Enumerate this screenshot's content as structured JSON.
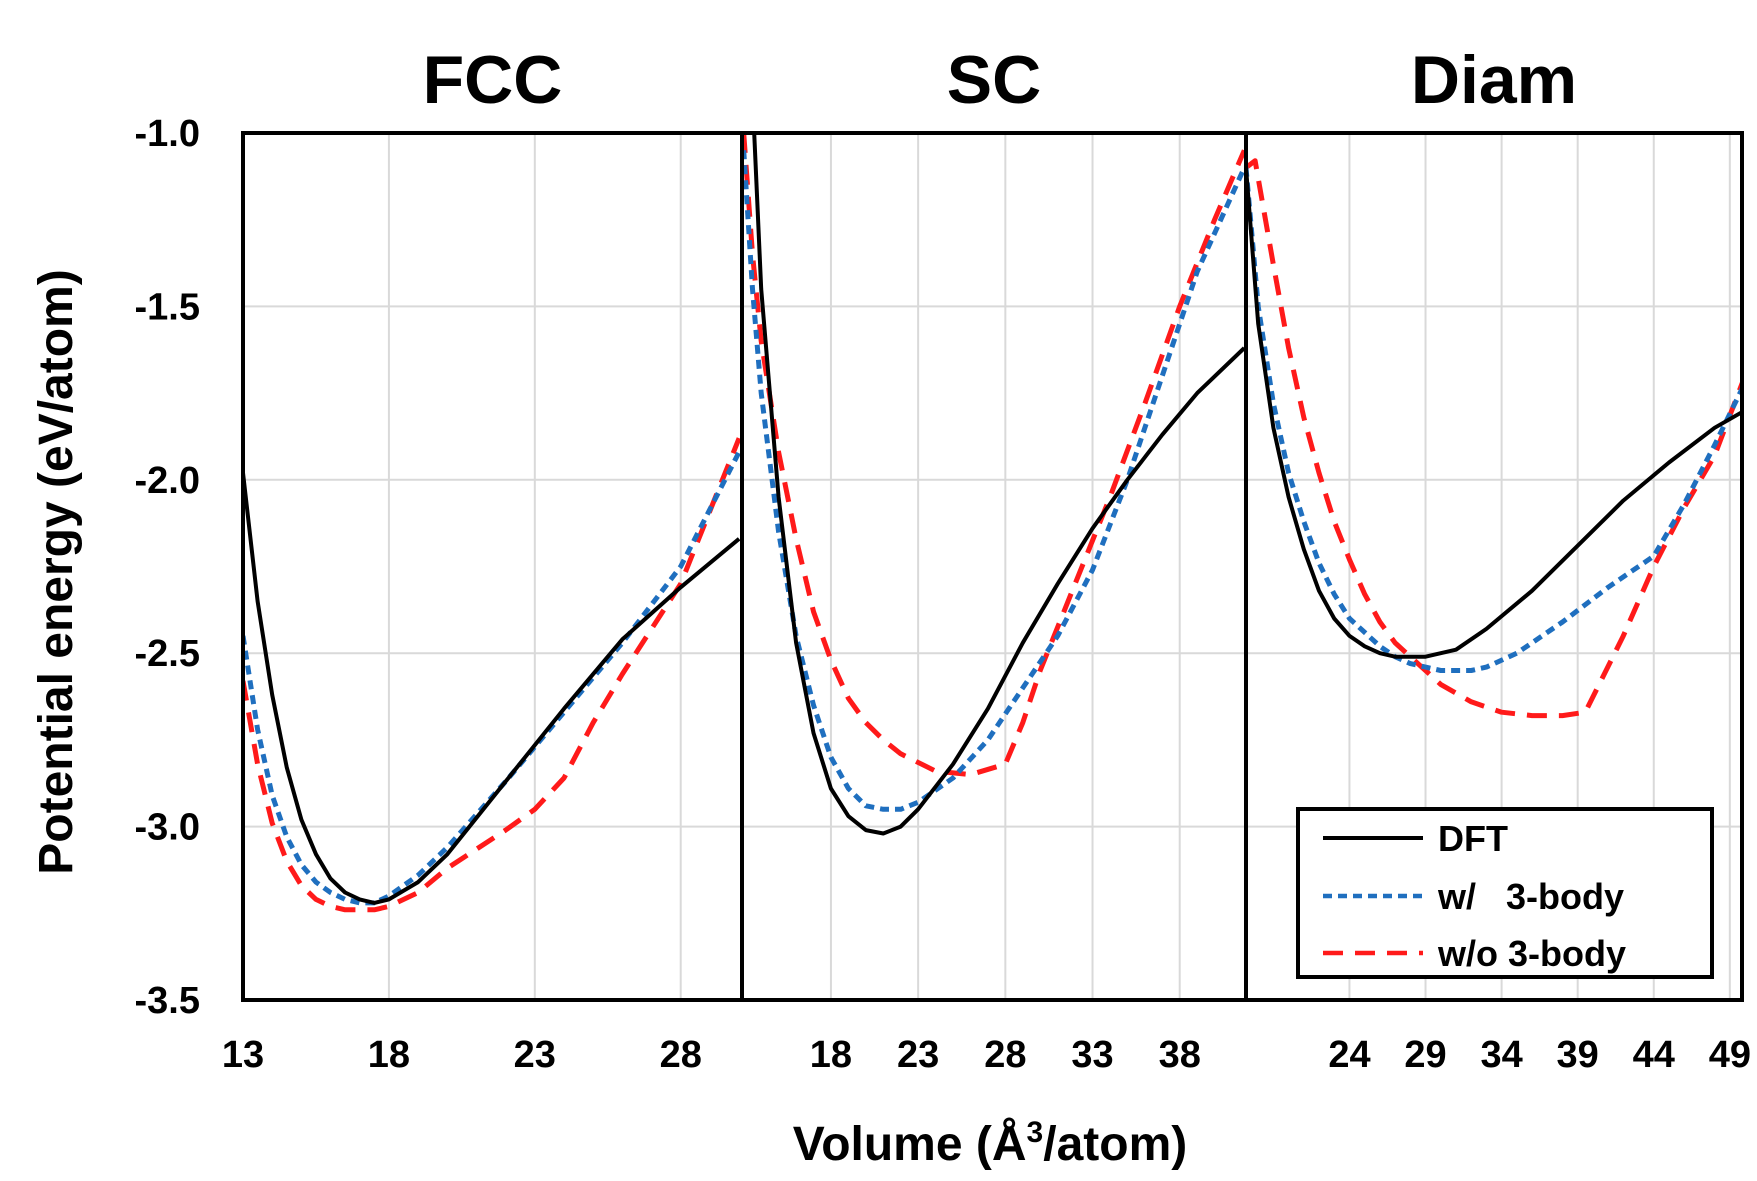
{
  "chart_data": {
    "type": "line",
    "ylabel": "Potential energy (eV/atom)",
    "xlabel_main": "Volume (Å",
    "xlabel_sup": "3",
    "xlabel_tail": "/atom)",
    "ylim": [
      -3.5,
      -1.0
    ],
    "yticks": [
      -1.0,
      -1.5,
      -2.0,
      -2.5,
      -3.0,
      -3.5
    ],
    "ytick_labels": [
      "-1.0",
      "-1.5",
      "-2.0",
      "-2.5",
      "-3.0",
      "-3.5"
    ],
    "grid": true,
    "legend_position": "bottom-right",
    "legend": [
      {
        "label": "DFT",
        "color": "#000000",
        "style": "solid"
      },
      {
        "label": "w/   3-body",
        "color": "#1f6fbf",
        "style": "dotted"
      },
      {
        "label": "w/o 3-body",
        "color": "#ff1a1a",
        "style": "dashed"
      }
    ],
    "panels": [
      {
        "title": "FCC",
        "xlim": [
          13,
          30.1
        ],
        "xticks": [
          13,
          18,
          23,
          28
        ],
        "series": [
          {
            "name": "DFT",
            "color": "#000000",
            "style": "solid",
            "x": [
              13.0,
              13.5,
              14.0,
              14.5,
              15.0,
              15.5,
              16.0,
              16.5,
              17.0,
              17.5,
              18.0,
              19.0,
              20.0,
              22.0,
              24.0,
              26.0,
              28.0,
              30.0
            ],
            "y": [
              -1.98,
              -2.35,
              -2.62,
              -2.83,
              -2.98,
              -3.08,
              -3.15,
              -3.19,
              -3.21,
              -3.22,
              -3.21,
              -3.16,
              -3.08,
              -2.87,
              -2.66,
              -2.46,
              -2.31,
              -2.17
            ]
          },
          {
            "name": "w/   3-body",
            "color": "#1f6fbf",
            "style": "dotted",
            "x": [
              13.0,
              13.5,
              14.0,
              14.5,
              15.0,
              15.5,
              16.0,
              16.5,
              17.0,
              17.5,
              18.0,
              19.0,
              20.0,
              22.0,
              24.0,
              26.0,
              28.0,
              30.0
            ],
            "y": [
              -2.45,
              -2.72,
              -2.91,
              -3.03,
              -3.11,
              -3.16,
              -3.19,
              -3.21,
              -3.22,
              -3.22,
              -3.2,
              -3.14,
              -3.06,
              -2.87,
              -2.67,
              -2.47,
              -2.25,
              -1.92
            ]
          },
          {
            "name": "w/o 3-body",
            "color": "#ff1a1a",
            "style": "dashed",
            "x": [
              13.0,
              13.5,
              14.0,
              14.5,
              15.0,
              15.5,
              16.0,
              16.5,
              17.0,
              17.5,
              18.0,
              19.0,
              20.0,
              22.0,
              23.0,
              24.0,
              25.0,
              26.0,
              28.0,
              30.0
            ],
            "y": [
              -2.58,
              -2.82,
              -2.99,
              -3.1,
              -3.17,
              -3.21,
              -3.23,
              -3.24,
              -3.24,
              -3.24,
              -3.23,
              -3.19,
              -3.12,
              -3.01,
              -2.95,
              -2.86,
              -2.7,
              -2.56,
              -2.3,
              -1.88
            ]
          }
        ]
      },
      {
        "title": "SC",
        "xlim": [
          12.9,
          41.8
        ],
        "xticks": [
          18,
          23,
          28,
          33,
          38
        ],
        "series": [
          {
            "name": "DFT",
            "color": "#000000",
            "style": "solid",
            "x": [
              13.6,
              14.0,
              15.0,
              16.0,
              17.0,
              18.0,
              19.0,
              20.0,
              21.0,
              22.0,
              23.0,
              25.0,
              27.0,
              29.0,
              31.0,
              33.0,
              35.0,
              37.0,
              39.0,
              41.7
            ],
            "y": [
              -1.0,
              -1.45,
              -2.05,
              -2.47,
              -2.73,
              -2.89,
              -2.97,
              -3.01,
              -3.02,
              -3.0,
              -2.95,
              -2.82,
              -2.66,
              -2.47,
              -2.3,
              -2.14,
              -2.0,
              -1.87,
              -1.75,
              -1.62
            ]
          },
          {
            "name": "w/   3-body",
            "color": "#1f6fbf",
            "style": "dotted",
            "x": [
              13.0,
              13.5,
              14.0,
              15.0,
              16.0,
              17.0,
              18.0,
              19.0,
              20.0,
              21.0,
              22.0,
              23.0,
              25.0,
              27.0,
              29.0,
              31.0,
              33.0,
              35.0,
              37.0,
              39.0,
              41.7
            ],
            "y": [
              -1.05,
              -1.45,
              -1.75,
              -2.15,
              -2.45,
              -2.65,
              -2.8,
              -2.89,
              -2.94,
              -2.95,
              -2.95,
              -2.93,
              -2.86,
              -2.75,
              -2.6,
              -2.45,
              -2.26,
              -2.0,
              -1.7,
              -1.4,
              -1.1
            ]
          },
          {
            "name": "w/o 3-body",
            "color": "#ff1a1a",
            "style": "dashed",
            "x": [
              13.0,
              13.5,
              14.0,
              15.0,
              16.0,
              17.0,
              18.0,
              19.0,
              20.0,
              21.0,
              22.0,
              24.0,
              26.0,
              28.0,
              29.0,
              30.0,
              32.0,
              34.0,
              36.0,
              38.0,
              40.0,
              41.7
            ],
            "y": [
              -1.0,
              -1.35,
              -1.6,
              -1.92,
              -2.17,
              -2.38,
              -2.52,
              -2.63,
              -2.7,
              -2.75,
              -2.79,
              -2.84,
              -2.85,
              -2.82,
              -2.7,
              -2.55,
              -2.3,
              -2.05,
              -1.78,
              -1.5,
              -1.25,
              -1.05
            ]
          }
        ]
      },
      {
        "title": "Diam",
        "xlim": [
          17.2,
          49.8
        ],
        "xticks": [
          24,
          29,
          34,
          39,
          44,
          49
        ],
        "series": [
          {
            "name": "DFT",
            "color": "#000000",
            "style": "solid",
            "x": [
              17.2,
              18.0,
              19.0,
              20.0,
              21.0,
              22.0,
              23.0,
              24.0,
              25.0,
              26.0,
              27.0,
              28.0,
              29.0,
              30.0,
              31.0,
              33.0,
              36.0,
              39.0,
              42.0,
              45.0,
              48.0,
              50.0
            ],
            "y": [
              -1.1,
              -1.55,
              -1.85,
              -2.05,
              -2.2,
              -2.32,
              -2.4,
              -2.45,
              -2.48,
              -2.5,
              -2.51,
              -2.51,
              -2.51,
              -2.5,
              -2.49,
              -2.43,
              -2.32,
              -2.19,
              -2.06,
              -1.95,
              -1.85,
              -1.8
            ]
          },
          {
            "name": "w/   3-body",
            "color": "#1f6fbf",
            "style": "dotted",
            "x": [
              17.2,
              18.0,
              19.0,
              20.0,
              21.0,
              22.0,
              23.0,
              24.0,
              25.0,
              26.0,
              27.0,
              28.0,
              29.0,
              30.0,
              31.0,
              32.0,
              33.0,
              35.0,
              38.0,
              41.0,
              44.0,
              46.0,
              48.0,
              50.0
            ],
            "y": [
              -1.1,
              -1.5,
              -1.78,
              -1.98,
              -2.12,
              -2.24,
              -2.33,
              -2.4,
              -2.44,
              -2.48,
              -2.51,
              -2.53,
              -2.54,
              -2.55,
              -2.55,
              -2.55,
              -2.54,
              -2.5,
              -2.41,
              -2.31,
              -2.22,
              -2.07,
              -1.9,
              -1.72
            ]
          },
          {
            "name": "w/o 3-body",
            "color": "#ff1a1a",
            "style": "dashed",
            "x": [
              17.2,
              17.8,
              19.0,
              20.0,
              21.0,
              22.0,
              23.0,
              24.0,
              25.0,
              26.0,
              27.0,
              28.0,
              29.0,
              30.0,
              32.0,
              34.0,
              36.0,
              38.0,
              39.5,
              42.0,
              44.0,
              46.0,
              48.0,
              50.0
            ],
            "y": [
              -1.1,
              -1.08,
              -1.38,
              -1.62,
              -1.82,
              -1.98,
              -2.12,
              -2.23,
              -2.33,
              -2.41,
              -2.47,
              -2.51,
              -2.55,
              -2.59,
              -2.64,
              -2.67,
              -2.68,
              -2.68,
              -2.67,
              -2.45,
              -2.25,
              -2.08,
              -1.93,
              -1.7
            ]
          }
        ]
      }
    ]
  }
}
